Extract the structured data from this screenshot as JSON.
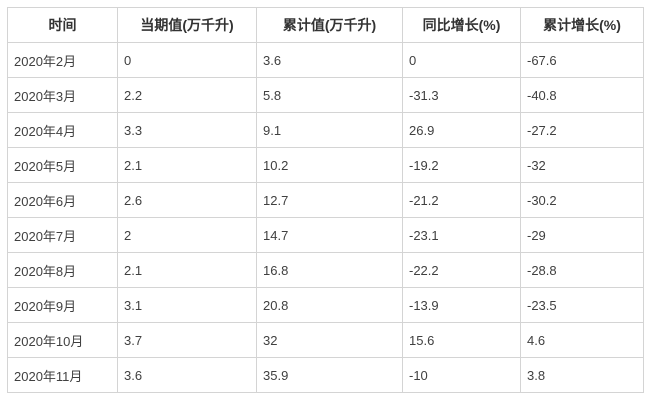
{
  "colors": {
    "background": "#ffffff",
    "border_outer": "#c6c6c6",
    "border_inner": "#d4d4d4",
    "header_text": "#333333",
    "body_text": "#404040"
  },
  "table": {
    "columns": [
      {
        "label": "时间"
      },
      {
        "label": "当期值(万千升)"
      },
      {
        "label": "累计值(万千升)"
      },
      {
        "label": "同比增长(%)"
      },
      {
        "label": "累计增长(%)"
      }
    ],
    "rows": [
      [
        "2020年2月",
        "0",
        "3.6",
        "0",
        "-67.6"
      ],
      [
        "2020年3月",
        "2.2",
        "5.8",
        "-31.3",
        "-40.8"
      ],
      [
        "2020年4月",
        "3.3",
        "9.1",
        "26.9",
        "-27.2"
      ],
      [
        "2020年5月",
        "2.1",
        "10.2",
        "-19.2",
        "-32"
      ],
      [
        "2020年6月",
        "2.6",
        "12.7",
        "-21.2",
        "-30.2"
      ],
      [
        "2020年7月",
        "2",
        "14.7",
        "-23.1",
        "-29"
      ],
      [
        "2020年8月",
        "2.1",
        "16.8",
        "-22.2",
        "-28.8"
      ],
      [
        "2020年9月",
        "3.1",
        "20.8",
        "-13.9",
        "-23.5"
      ],
      [
        "2020年10月",
        "3.7",
        "32",
        "15.6",
        "4.6"
      ],
      [
        "2020年11月",
        "3.6",
        "35.9",
        "-10",
        "3.8"
      ]
    ]
  },
  "chart_data": {
    "type": "table",
    "title": "",
    "columns": [
      "时间",
      "当期值(万千升)",
      "累计值(万千升)",
      "同比增长(%)",
      "累计增长(%)"
    ],
    "categories": [
      "2020年2月",
      "2020年3月",
      "2020年4月",
      "2020年5月",
      "2020年6月",
      "2020年7月",
      "2020年8月",
      "2020年9月",
      "2020年10月",
      "2020年11月"
    ],
    "series": [
      {
        "name": "当期值(万千升)",
        "values": [
          0,
          2.2,
          3.3,
          2.1,
          2.6,
          2,
          2.1,
          3.1,
          3.7,
          3.6
        ]
      },
      {
        "name": "累计值(万千升)",
        "values": [
          3.6,
          5.8,
          9.1,
          10.2,
          12.7,
          14.7,
          16.8,
          20.8,
          32,
          35.9
        ]
      },
      {
        "name": "同比增长(%)",
        "values": [
          0,
          -31.3,
          26.9,
          -19.2,
          -21.2,
          -23.1,
          -22.2,
          -13.9,
          15.6,
          -10
        ]
      },
      {
        "name": "累计增长(%)",
        "values": [
          -67.6,
          -40.8,
          -27.2,
          -32,
          -30.2,
          -29,
          -28.8,
          -23.5,
          4.6,
          3.8
        ]
      }
    ]
  }
}
